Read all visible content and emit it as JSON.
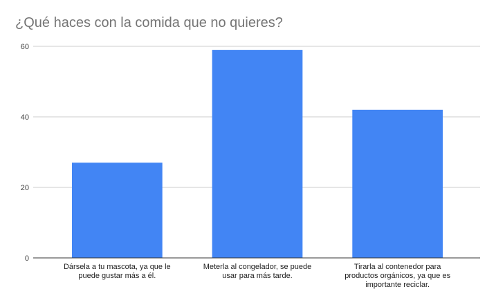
{
  "chart_data": {
    "type": "bar",
    "title": "¿Qué haces con la comida que no quieres?",
    "xlabel": "",
    "ylabel": "",
    "ylim": [
      0,
      60
    ],
    "yticks": [
      "0",
      "20",
      "40",
      "60"
    ],
    "grid": true,
    "legend": "none",
    "categories": [
      [
        "Dársela a tu mascota, ya que le",
        "puede gustar más a él."
      ],
      [
        "Meterla al congelador, se puede",
        "usar para más tarde."
      ],
      [
        "Tirarla al contenedor para",
        "productos orgánicos,  ya que es",
        "importante reciclar."
      ]
    ],
    "values": [
      27,
      59,
      42
    ],
    "bar_color": "#4285f4",
    "grid_color": "#cccccc",
    "axis_color": "#333333"
  }
}
